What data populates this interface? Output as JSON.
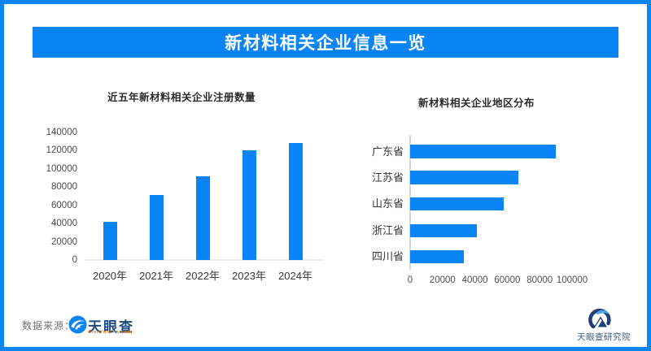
{
  "page": {
    "accent_color": "#0b85f5",
    "header": {
      "title": "新材料相关企业信息一览"
    },
    "footer": {
      "source_label": "数据来源：",
      "tyc_logo_text": "天眼查",
      "tyc_logo_sub": "TianYanCha.com",
      "institute_label": "天眼查研究院"
    }
  },
  "chart_data": [
    {
      "type": "bar",
      "orientation": "vertical",
      "title": "近五年新材料相关企业注册数量",
      "categories": [
        "2020年",
        "2021年",
        "2022年",
        "2023年",
        "2024年"
      ],
      "values": [
        42000,
        71000,
        92000,
        120000,
        128000
      ],
      "ylim": [
        0,
        140000
      ],
      "yticks": [
        0,
        20000,
        40000,
        60000,
        80000,
        100000,
        120000,
        140000
      ],
      "bar_color": "#0b85f5",
      "grid": false,
      "legend": "none"
    },
    {
      "type": "bar",
      "orientation": "horizontal",
      "title": "新材料相关企业地区分布",
      "categories": [
        "广东省",
        "江苏省",
        "山东省",
        "浙江省",
        "四川省"
      ],
      "values": [
        90000,
        67000,
        58000,
        41000,
        33000
      ],
      "xlim": [
        0,
        100000
      ],
      "xticks": [
        0,
        20000,
        40000,
        60000,
        80000,
        100000
      ],
      "bar_color": "#0b85f5",
      "grid": false,
      "legend": "none"
    }
  ]
}
